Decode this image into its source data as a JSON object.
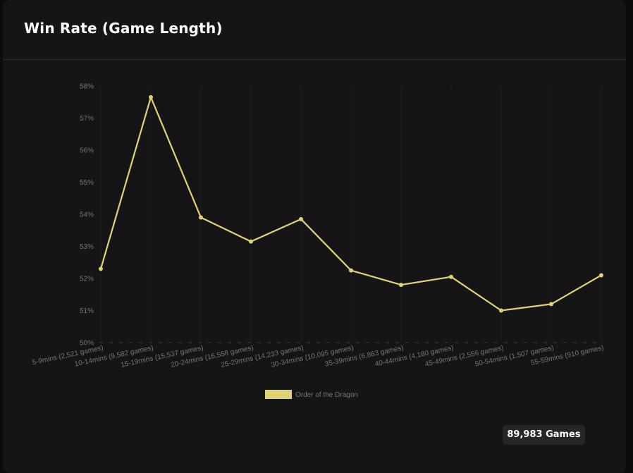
{
  "card": {
    "title": "Win Rate (Game Length)",
    "games_badge": "89,983 Games"
  },
  "chart_data": {
    "type": "line",
    "title": "",
    "xlabel": "",
    "ylabel": "",
    "categories": [
      "5-9mins (2,521 games)",
      "10-14mins (9,582 games)",
      "15-19mins (15,537 games)",
      "20-24mins (16,558 games)",
      "25-29mins (14,233 games)",
      "30-34mins (10,095 games)",
      "35-39mins (6,863 games)",
      "40-44mins (4,180 games)",
      "45-49mins (2,556 games)",
      "50-54mins (1,507 games)",
      "55-59mins (910 games)"
    ],
    "series": [
      {
        "name": "Order of the Dragon",
        "color": "#e2d273",
        "values": [
          52.3,
          57.65,
          53.9,
          53.15,
          53.85,
          52.25,
          51.8,
          52.05,
          51.0,
          51.2,
          52.1
        ]
      }
    ],
    "ylim": [
      50,
      58
    ],
    "yticks": [
      "50%",
      "51%",
      "52%",
      "53%",
      "54%",
      "55%",
      "56%",
      "57%",
      "58%"
    ],
    "grid": "vertical-dashed",
    "legend": "bottom-center"
  }
}
